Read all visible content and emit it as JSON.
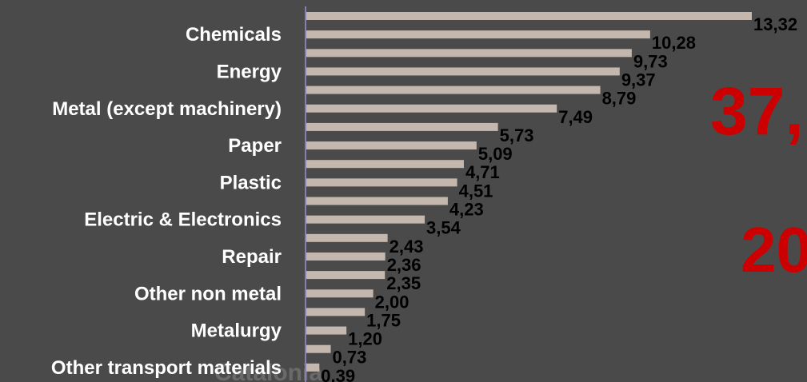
{
  "chart_data": {
    "type": "bar",
    "orientation": "horizontal",
    "categories": [
      "",
      "Chemicals",
      "",
      "Energy",
      "",
      "Metal (except machinery)",
      "",
      "Paper",
      "",
      "Plastic",
      "",
      "Electric & Electronics",
      "",
      "Repair",
      "",
      "Other non metal",
      "",
      "Metalurgy",
      "",
      "Other transport materials"
    ],
    "values": [
      13.32,
      10.28,
      9.73,
      9.37,
      8.79,
      7.49,
      5.73,
      5.09,
      4.71,
      4.51,
      4.23,
      3.54,
      2.43,
      2.36,
      2.35,
      2.0,
      1.75,
      1.2,
      0.73,
      0.39
    ],
    "value_labels": [
      "13,32",
      "10,28",
      "9,73",
      "9,37",
      "8,79",
      "7,49",
      "5,73",
      "5,09",
      "4,71",
      "4,51",
      "4,23",
      "3,54",
      "2,43",
      "2,36",
      "2,35",
      "2,00",
      "1,75",
      "1,20",
      "0,73",
      "0,39"
    ],
    "xlim": [
      0,
      13.32
    ],
    "grid": false,
    "bar_color": "#c4b8ae",
    "axis_color": "#8a7fb0"
  },
  "overlay": {
    "big_text_1": "37,",
    "big_text_2": "20",
    "background_text": "Catalonia",
    "accent_color": "#cc0000"
  }
}
